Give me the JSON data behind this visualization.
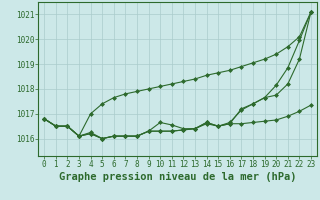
{
  "xlabel": "Graphe pression niveau de la mer (hPa)",
  "ylim": [
    1015.3,
    1021.5
  ],
  "xlim": [
    -0.5,
    23.5
  ],
  "yticks": [
    1016,
    1017,
    1018,
    1019,
    1020,
    1021
  ],
  "background_color": "#cce8e8",
  "grid_color": "#aacccc",
  "line_color": "#2d6a2d",
  "series": [
    [
      1016.8,
      1016.5,
      1016.5,
      1016.1,
      1016.2,
      1016.0,
      1016.1,
      1016.1,
      1016.1,
      1016.3,
      1016.65,
      1016.55,
      1016.4,
      1016.4,
      1016.6,
      1016.5,
      1016.6,
      1016.6,
      1016.65,
      1016.7,
      1016.75,
      1016.9,
      1017.1,
      1017.35
    ],
    [
      1016.8,
      1016.5,
      1016.5,
      1016.1,
      1016.2,
      1016.0,
      1016.1,
      1016.1,
      1016.1,
      1016.3,
      1016.3,
      1016.3,
      1016.35,
      1016.4,
      1016.65,
      1016.5,
      1016.6,
      1017.2,
      1017.4,
      1017.65,
      1017.75,
      1018.2,
      1019.2,
      1021.1
    ],
    [
      1016.8,
      1016.5,
      1016.5,
      1016.1,
      1016.25,
      1016.0,
      1016.1,
      1016.1,
      1016.1,
      1016.3,
      1016.3,
      1016.3,
      1016.35,
      1016.4,
      1016.65,
      1016.5,
      1016.65,
      1017.15,
      1017.4,
      1017.65,
      1018.15,
      1018.85,
      1019.95,
      1021.1
    ],
    [
      1016.8,
      1016.5,
      1016.5,
      1016.1,
      1017.0,
      1017.4,
      1017.65,
      1017.8,
      1017.9,
      1018.0,
      1018.1,
      1018.2,
      1018.3,
      1018.4,
      1018.55,
      1018.65,
      1018.75,
      1018.9,
      1019.05,
      1019.2,
      1019.4,
      1019.7,
      1020.1,
      1021.1
    ]
  ],
  "marker": "D",
  "marker_size": 2.0,
  "linewidth": 0.8,
  "tick_fontsize": 5.5,
  "xlabel_fontsize": 7.5,
  "fig_width": 3.2,
  "fig_height": 2.0,
  "dpi": 100
}
